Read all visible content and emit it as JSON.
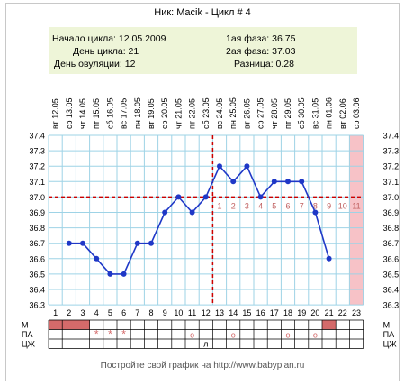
{
  "header": {
    "title": "Ник: Macik - Цикл # 4"
  },
  "info": {
    "cycle_start": "Начало цикла: 12.05.2009",
    "cycle_day": "День цикла: 21",
    "ovulation_day": "День овуляции: 12",
    "phase1": "1ая фаза: 36.75",
    "phase2": "2ая фаза: 37.03",
    "difference": "Разница: 0.28"
  },
  "footer": {
    "text": "Постройте свой график на http://www.babyplan.ru"
  },
  "colors": {
    "line": "#1f38c7",
    "grid": "#9ed3e6",
    "coverline": "#cc0000",
    "menstruation": "#d46a6a",
    "future_band": "#f7c2c7",
    "phase_numbers": "#c06060"
  },
  "chart_data": {
    "type": "line",
    "title": "",
    "xlabel": "",
    "ylabel": "",
    "ylim": [
      36.3,
      37.4
    ],
    "y_ticks": [
      "37.4",
      "37.3",
      "37.2",
      "37.1",
      "37.0",
      "36.9",
      "36.8",
      "36.7",
      "36.6",
      "36.5",
      "36.4",
      "36.3"
    ],
    "grid": true,
    "days": [
      1,
      2,
      3,
      4,
      5,
      6,
      7,
      8,
      9,
      10,
      11,
      12,
      13,
      14,
      15,
      16,
      17,
      18,
      19,
      20,
      21,
      22,
      23
    ],
    "weekdays": [
      "вт",
      "ср",
      "чт",
      "пт",
      "сб",
      "вс",
      "пн",
      "вт",
      "ср",
      "чт",
      "пт",
      "сб",
      "вс",
      "пн",
      "вт",
      "ср",
      "чт",
      "пт",
      "сб",
      "вс",
      "пн",
      "вт",
      "ср"
    ],
    "dates": [
      "12.05",
      "13.05",
      "14.05",
      "15.05",
      "16.05",
      "17.05",
      "18.05",
      "19.05",
      "20.05",
      "21.05",
      "22.05",
      "23.05",
      "24.05",
      "25.05",
      "26.05",
      "27.05",
      "28.05",
      "29.05",
      "30.05",
      "31.05",
      "01.06",
      "02.06",
      "03.06"
    ],
    "series": [
      {
        "values": [
          null,
          36.7,
          36.7,
          36.6,
          36.5,
          36.5,
          36.7,
          36.7,
          36.9,
          37.0,
          36.9,
          37.0,
          37.2,
          37.1,
          37.2,
          37.0,
          37.1,
          37.1,
          37.1,
          36.9,
          36.6,
          null,
          null
        ]
      }
    ],
    "coverline": 37.0,
    "ovulation_day": 12,
    "future_days_shaded": [
      23
    ],
    "luteal_day_numbers": [
      "1",
      "2",
      "3",
      "4",
      "5",
      "6",
      "7",
      "8",
      "9",
      "10",
      "11"
    ],
    "rows": {
      "labels": [
        "М",
        "ПА",
        "ЦЖ"
      ],
      "menstruation_days": [
        1,
        2,
        3,
        21
      ],
      "pa_marks": [
        {
          "day": 4,
          "mark": "*"
        },
        {
          "day": 5,
          "mark": "*"
        },
        {
          "day": 6,
          "mark": "*"
        },
        {
          "day": 11,
          "mark": "o"
        },
        {
          "day": 14,
          "mark": "o"
        },
        {
          "day": 18,
          "mark": "o"
        },
        {
          "day": 20,
          "mark": "o"
        }
      ],
      "cm_marks": [
        {
          "day": 12,
          "mark": "л"
        }
      ]
    }
  }
}
